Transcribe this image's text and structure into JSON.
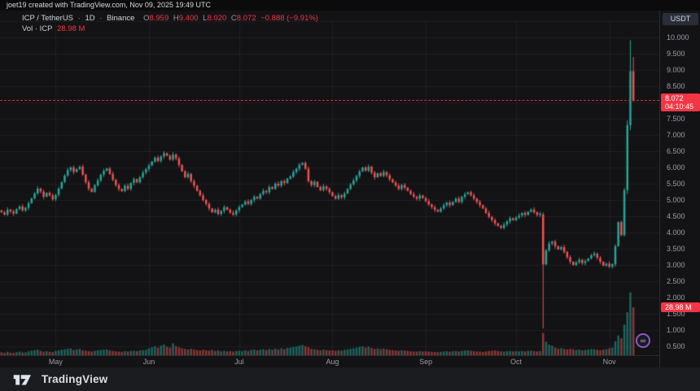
{
  "attribution": "joet19 created with TradingView.com, Nov 09, 2025 19:49 UTC",
  "legend": {
    "symbol": "ICP / TetherUS",
    "separator": "·",
    "interval": "1D",
    "exchange": "Binance",
    "o_label": "O",
    "o_value": "8.959",
    "h_label": "H",
    "h_value": "9.400",
    "l_label": "L",
    "l_value": "8.020",
    "c_label": "C",
    "c_value": "8.072",
    "change": "−0.888 (−9.91%)",
    "vol_label": "Vol · ICP",
    "vol_value": "28.98 M"
  },
  "axis": {
    "currency": "USDT",
    "price_ticks": [
      {
        "label": "10.500",
        "value": 10.5,
        "faint": true
      },
      {
        "label": "10.000",
        "value": 10.0
      },
      {
        "label": "9.500",
        "value": 9.5
      },
      {
        "label": "9.000",
        "value": 9.0
      },
      {
        "label": "8.500",
        "value": 8.5
      },
      {
        "label": "8.000",
        "value": 8.0
      },
      {
        "label": "7.500",
        "value": 7.5
      },
      {
        "label": "7.000",
        "value": 7.0
      },
      {
        "label": "6.500",
        "value": 6.5
      },
      {
        "label": "6.000",
        "value": 6.0
      },
      {
        "label": "5.500",
        "value": 5.5
      },
      {
        "label": "5.000",
        "value": 5.0
      },
      {
        "label": "4.500",
        "value": 4.5
      },
      {
        "label": "4.000",
        "value": 4.0
      },
      {
        "label": "3.500",
        "value": 3.5
      },
      {
        "label": "3.000",
        "value": 3.0
      },
      {
        "label": "2.500",
        "value": 2.5
      },
      {
        "label": "2.000",
        "value": 2.0
      },
      {
        "label": "1.500",
        "value": 1.5
      },
      {
        "label": "1.000",
        "value": 1.0
      },
      {
        "label": "0.500",
        "value": 0.5
      }
    ],
    "last_price_badge": {
      "price": "8.072",
      "countdown": "04:10:45"
    },
    "volume_badge": "28.98 M"
  },
  "time_axis": {
    "months": [
      {
        "label": "May",
        "index": 18
      },
      {
        "label": "Jun",
        "index": 49
      },
      {
        "label": "Jul",
        "index": 79
      },
      {
        "label": "Aug",
        "index": 110
      },
      {
        "label": "Sep",
        "index": 141
      },
      {
        "label": "Oct",
        "index": 171
      },
      {
        "label": "Nov",
        "index": 202
      }
    ]
  },
  "footer": {
    "brand": "TradingView"
  },
  "instrument_marker": {
    "icon": "icp-infinity-icon",
    "glyph": "∞"
  },
  "colors": {
    "up": "#26a69a",
    "down": "#ef5350",
    "accent_red": "#f23645",
    "grid": "rgba(255,255,255,0.05)",
    "background": "#131315"
  },
  "chart_data": {
    "type": "candlestick",
    "title": "ICP / TetherUS · 1D · Binance",
    "x_start": "2025-04-13",
    "x_end": "2025-11-09",
    "ylabel": "Price (USDT)",
    "ylim": [
      0.5,
      10.5
    ],
    "grid": true,
    "last_price": 8.072,
    "price_line": 8.072,
    "current_volume_m": 28.98,
    "first_open": 4.68,
    "closes": [
      4.62,
      4.55,
      4.7,
      4.65,
      4.58,
      4.72,
      4.8,
      4.68,
      4.76,
      4.9,
      5.05,
      5.2,
      5.35,
      5.26,
      5.1,
      5.22,
      5.14,
      5.02,
      5.16,
      5.35,
      5.55,
      5.75,
      5.92,
      6.0,
      5.86,
      5.95,
      6.02,
      5.78,
      5.55,
      5.35,
      5.25,
      5.45,
      5.6,
      5.78,
      5.9,
      5.97,
      5.8,
      5.62,
      5.46,
      5.34,
      5.27,
      5.44,
      5.34,
      5.52,
      5.64,
      5.54,
      5.7,
      5.84,
      5.95,
      6.06,
      6.18,
      6.3,
      6.2,
      6.34,
      6.44,
      6.36,
      6.24,
      6.4,
      6.28,
      6.08,
      5.88,
      5.7,
      5.8,
      5.58,
      5.44,
      5.28,
      5.14,
      5.0,
      4.88,
      4.74,
      4.62,
      4.7,
      4.57,
      4.66,
      4.78,
      4.7,
      4.61,
      4.55,
      4.68,
      4.78,
      4.86,
      4.95,
      4.88,
      5.0,
      5.1,
      5.04,
      5.18,
      5.28,
      5.24,
      5.4,
      5.34,
      5.5,
      5.44,
      5.58,
      5.52,
      5.66,
      5.72,
      5.86,
      5.96,
      6.08,
      6.14,
      5.96,
      5.58,
      5.46,
      5.56,
      5.4,
      5.3,
      5.42,
      5.34,
      5.24,
      5.12,
      5.04,
      5.15,
      5.08,
      5.2,
      5.34,
      5.48,
      5.6,
      5.74,
      5.88,
      6.0,
      5.9,
      6.02,
      5.84,
      5.7,
      5.82,
      5.74,
      5.86,
      5.76,
      5.64,
      5.54,
      5.44,
      5.34,
      5.46,
      5.38,
      5.28,
      5.18,
      5.1,
      5.04,
      5.14,
      5.06,
      4.96,
      4.86,
      4.78,
      4.7,
      4.64,
      4.74,
      4.84,
      4.92,
      4.84,
      4.94,
      5.04,
      4.94,
      5.1,
      5.18,
      5.24,
      5.14,
      5.04,
      4.94,
      4.84,
      4.74,
      4.6,
      4.48,
      4.38,
      4.28,
      4.2,
      4.14,
      4.24,
      4.34,
      4.44,
      4.38,
      4.46,
      4.52,
      4.6,
      4.54,
      4.64,
      4.7,
      4.62,
      4.54,
      4.58,
      3.02,
      3.45,
      3.66,
      3.72,
      3.58,
      3.48,
      3.55,
      3.4,
      3.24,
      3.1,
      3.0,
      3.08,
      3.16,
      3.06,
      3.12,
      3.2,
      3.3,
      3.35,
      3.22,
      3.1,
      2.98,
      3.04,
      2.95,
      3.02,
      3.58,
      4.32,
      3.92,
      5.3,
      7.3,
      8.96,
      8.072
    ],
    "volumes_m": [
      1.8,
      1.5,
      2.1,
      1.6,
      1.4,
      1.9,
      2.2,
      1.7,
      1.8,
      2.4,
      2.8,
      3.1,
      3.4,
      2.6,
      2.2,
      2.5,
      2.1,
      1.9,
      2.6,
      3.0,
      3.4,
      3.6,
      3.9,
      4.1,
      3.2,
      3.5,
      3.8,
      3.0,
      2.8,
      2.5,
      2.3,
      2.7,
      3.0,
      3.2,
      3.4,
      3.5,
      2.9,
      2.6,
      2.4,
      2.2,
      2.1,
      2.5,
      2.3,
      2.6,
      2.8,
      2.5,
      2.9,
      3.1,
      3.3,
      4.2,
      4.8,
      5.5,
      4.5,
      5.8,
      6.5,
      5.2,
      4.6,
      7.2,
      5.5,
      4.8,
      4.2,
      3.8,
      3.5,
      3.9,
      3.4,
      3.1,
      2.9,
      3.3,
      3.0,
      2.8,
      3.2,
      2.6,
      2.9,
      2.4,
      2.7,
      2.3,
      2.5,
      2.2,
      2.6,
      2.8,
      2.5,
      3.0,
      2.6,
      3.2,
      3.4,
      2.9,
      3.3,
      3.6,
      3.1,
      3.8,
      3.3,
      4.0,
      3.5,
      4.2,
      3.7,
      4.4,
      4.6,
      5.0,
      5.3,
      5.8,
      6.2,
      5.5,
      4.8,
      3.9,
      3.6,
      3.3,
      3.0,
      3.4,
      3.1,
      2.9,
      3.0,
      2.7,
      3.1,
      2.8,
      3.3,
      3.6,
      3.9,
      4.2,
      4.6,
      5.0,
      5.4,
      4.6,
      5.2,
      4.4,
      3.8,
      4.1,
      3.7,
      4.0,
      3.6,
      3.3,
      3.1,
      2.9,
      2.7,
      3.0,
      2.8,
      2.6,
      2.4,
      2.3,
      2.2,
      2.5,
      2.3,
      2.4,
      2.2,
      2.1,
      2.0,
      1.9,
      2.1,
      2.3,
      2.4,
      2.2,
      2.4,
      2.6,
      2.3,
      2.7,
      2.9,
      3.0,
      2.7,
      2.5,
      2.3,
      2.2,
      2.0,
      2.3,
      2.5,
      2.7,
      2.9,
      2.6,
      2.4,
      2.2,
      2.4,
      2.6,
      2.3,
      2.5,
      2.4,
      2.6,
      2.3,
      2.7,
      2.8,
      2.5,
      2.3,
      2.6,
      13.5,
      8.2,
      6.4,
      5.8,
      4.6,
      4.0,
      4.3,
      3.8,
      3.5,
      3.9,
      3.6,
      3.2,
      3.4,
      3.0,
      3.2,
      3.5,
      3.8,
      3.6,
      3.3,
      3.0,
      3.4,
      3.7,
      4.2,
      4.6,
      8.5,
      12.0,
      10.2,
      18.5,
      26.0,
      38.0,
      28.98
    ],
    "overrides": {
      "180": {
        "o": 4.55,
        "h": 4.62,
        "l": 1.05,
        "c": 3.02
      },
      "208": {
        "o": 5.3,
        "h": 7.45,
        "l": 5.18,
        "c": 7.3
      },
      "209": {
        "o": 7.3,
        "h": 9.912,
        "l": 7.15,
        "c": 8.96
      },
      "210": {
        "o": 8.959,
        "h": 9.4,
        "l": 8.02,
        "c": 8.072
      }
    }
  }
}
